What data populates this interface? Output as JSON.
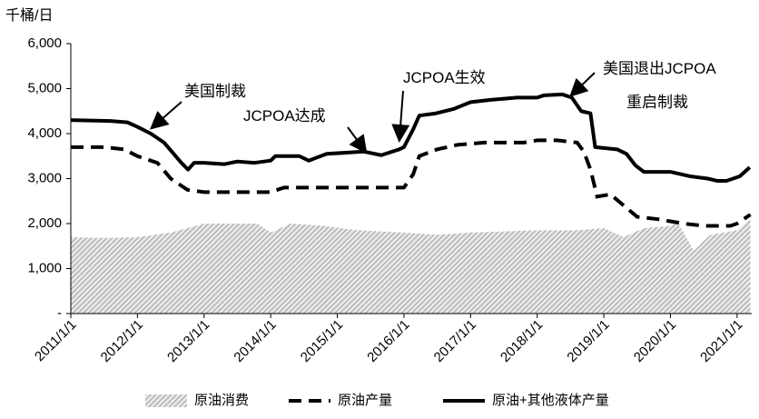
{
  "chart_data": {
    "type": "line",
    "y_label": "千桶/日",
    "ylim": [
      0,
      6000
    ],
    "yticks": [
      {
        "value": 0,
        "label": "-"
      },
      {
        "value": 1000,
        "label": "1,000"
      },
      {
        "value": 2000,
        "label": "2,000"
      },
      {
        "value": 3000,
        "label": "3,000"
      },
      {
        "value": 4000,
        "label": "4,000"
      },
      {
        "value": 5000,
        "label": "5,000"
      },
      {
        "value": 6000,
        "label": "6,000"
      }
    ],
    "xlim": [
      2011,
      2021.22
    ],
    "xticks": [
      {
        "value": 2011,
        "label": "2011/1/1"
      },
      {
        "value": 2012,
        "label": "2012/1/1"
      },
      {
        "value": 2013,
        "label": "2013/1/1"
      },
      {
        "value": 2014,
        "label": "2014/1/1"
      },
      {
        "value": 2015,
        "label": "2015/1/1"
      },
      {
        "value": 2016,
        "label": "2016/1/1"
      },
      {
        "value": 2017,
        "label": "2017/1/1"
      },
      {
        "value": 2018,
        "label": "2018/1/1"
      },
      {
        "value": 2019,
        "label": "2019/1/1"
      },
      {
        "value": 2020,
        "label": "2020/1/1"
      },
      {
        "value": 2021,
        "label": "2021/1/1"
      }
    ],
    "grid": false,
    "legend": "bottom",
    "annotations": [
      "美国制裁",
      "JCPOA达成",
      "JCPOA生效",
      "美国退出JCPOA",
      "重启制裁"
    ],
    "series": [
      {
        "name": "原油消费",
        "style": "hatched-area",
        "color": "#a6a6a6",
        "x": [
          2011,
          2011.5,
          2012,
          2012.5,
          2013,
          2013.8,
          2014,
          2014.3,
          2014.8,
          2015.3,
          2016,
          2016.5,
          2017,
          2018,
          2018.6,
          2019,
          2019.3,
          2019.6,
          2020,
          2020.1,
          2020.35,
          2020.6,
          2021,
          2021.2
        ],
        "values": [
          1700,
          1680,
          1700,
          1800,
          2000,
          2000,
          1800,
          2000,
          1950,
          1850,
          1800,
          1750,
          1800,
          1850,
          1850,
          1900,
          1700,
          1900,
          1950,
          2050,
          1400,
          1750,
          1850,
          2100
        ]
      },
      {
        "name": "原油产量",
        "style": "dashed",
        "color": "#000000",
        "x": [
          2011,
          2011.5,
          2011.8,
          2012,
          2012.3,
          2012.5,
          2012.75,
          2013,
          2014,
          2014.2,
          2016,
          2016.14,
          2016.23,
          2016.5,
          2016.8,
          2017.2,
          2017.8,
          2018,
          2018.3,
          2018.6,
          2018.7,
          2018.8,
          2018.9,
          2019.1,
          2019.3,
          2019.5,
          2019.8,
          2020,
          2020.2,
          2020.5,
          2020.9,
          2021,
          2021.2
        ],
        "values": [
          3700,
          3700,
          3650,
          3500,
          3350,
          3000,
          2750,
          2700,
          2700,
          2800,
          2800,
          3100,
          3500,
          3650,
          3750,
          3800,
          3800,
          3850,
          3850,
          3800,
          3600,
          3200,
          2600,
          2650,
          2400,
          2150,
          2100,
          2050,
          2000,
          1950,
          1950,
          2000,
          2200
        ]
      },
      {
        "name": "原油+其他液体产量",
        "style": "solid",
        "color": "#000000",
        "x": [
          2011,
          2011.6,
          2011.85,
          2012,
          2012.2,
          2012.4,
          2012.66,
          2012.76,
          2012.85,
          2013,
          2013.3,
          2013.5,
          2013.75,
          2014,
          2014.07,
          2014.43,
          2014.57,
          2014.84,
          2015.4,
          2015.66,
          2015.93,
          2016,
          2016.14,
          2016.23,
          2016.48,
          2016.75,
          2017,
          2017.3,
          2017.7,
          2018,
          2018.1,
          2018.38,
          2018.52,
          2018.66,
          2018.8,
          2018.87,
          2019.2,
          2019.34,
          2019.47,
          2019.6,
          2020,
          2020.3,
          2020.56,
          2020.7,
          2020.84,
          2021.04,
          2021.19
        ],
        "values": [
          4300,
          4280,
          4250,
          4150,
          4000,
          3800,
          3350,
          3200,
          3350,
          3350,
          3320,
          3380,
          3350,
          3400,
          3500,
          3500,
          3400,
          3550,
          3600,
          3520,
          3650,
          3700,
          4100,
          4400,
          4450,
          4550,
          4700,
          4750,
          4800,
          4800,
          4850,
          4870,
          4800,
          4500,
          4450,
          3700,
          3650,
          3550,
          3300,
          3150,
          3150,
          3050,
          3000,
          2950,
          2950,
          3050,
          3250
        ]
      }
    ]
  }
}
